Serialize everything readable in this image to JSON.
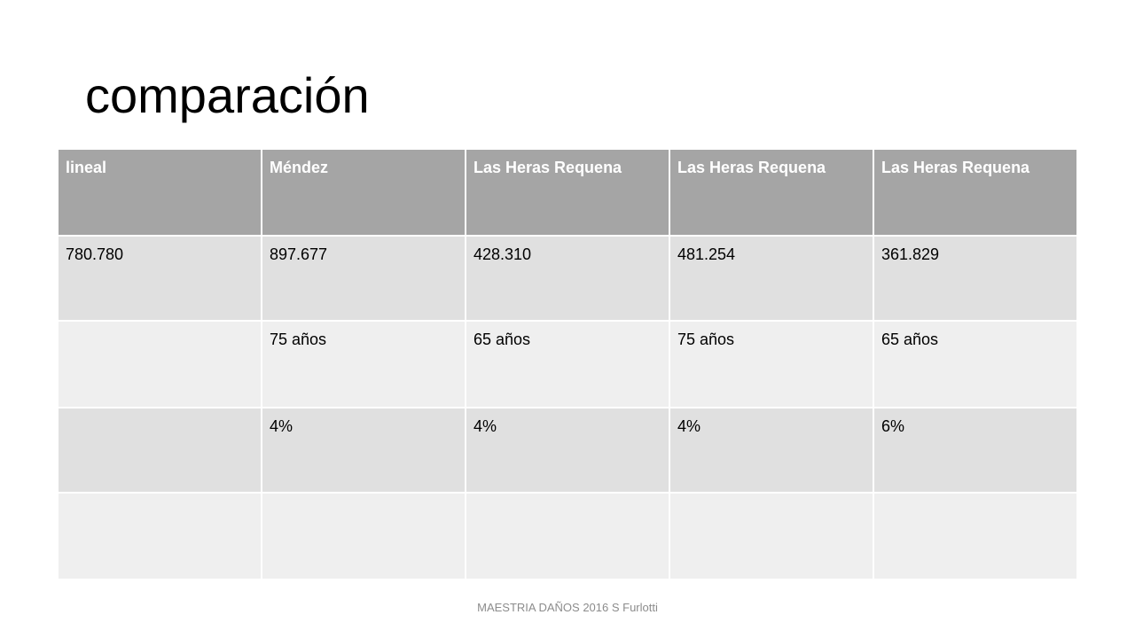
{
  "slide": {
    "title": "comparación",
    "footer": "MAESTRIA DAÑOS 2016 S Furlotti"
  },
  "table": {
    "headers": [
      "lineal",
      "Méndez",
      "Las Heras Requena",
      "Las Heras Requena",
      "Las Heras Requena"
    ],
    "rows": [
      [
        "780.780",
        "897.677",
        "428.310",
        "481.254",
        "361.829"
      ],
      [
        "",
        "75 años",
        "65 años",
        "75 años",
        "65 años"
      ],
      [
        "",
        "4%",
        "4%",
        "4%",
        "6%"
      ],
      [
        "",
        "",
        "",
        "",
        ""
      ]
    ]
  },
  "colors": {
    "header_bg": "#a5a5a5",
    "row_dark": "#e0e0e0",
    "row_light": "#efefef",
    "footer_text": "#8c8c8c"
  }
}
